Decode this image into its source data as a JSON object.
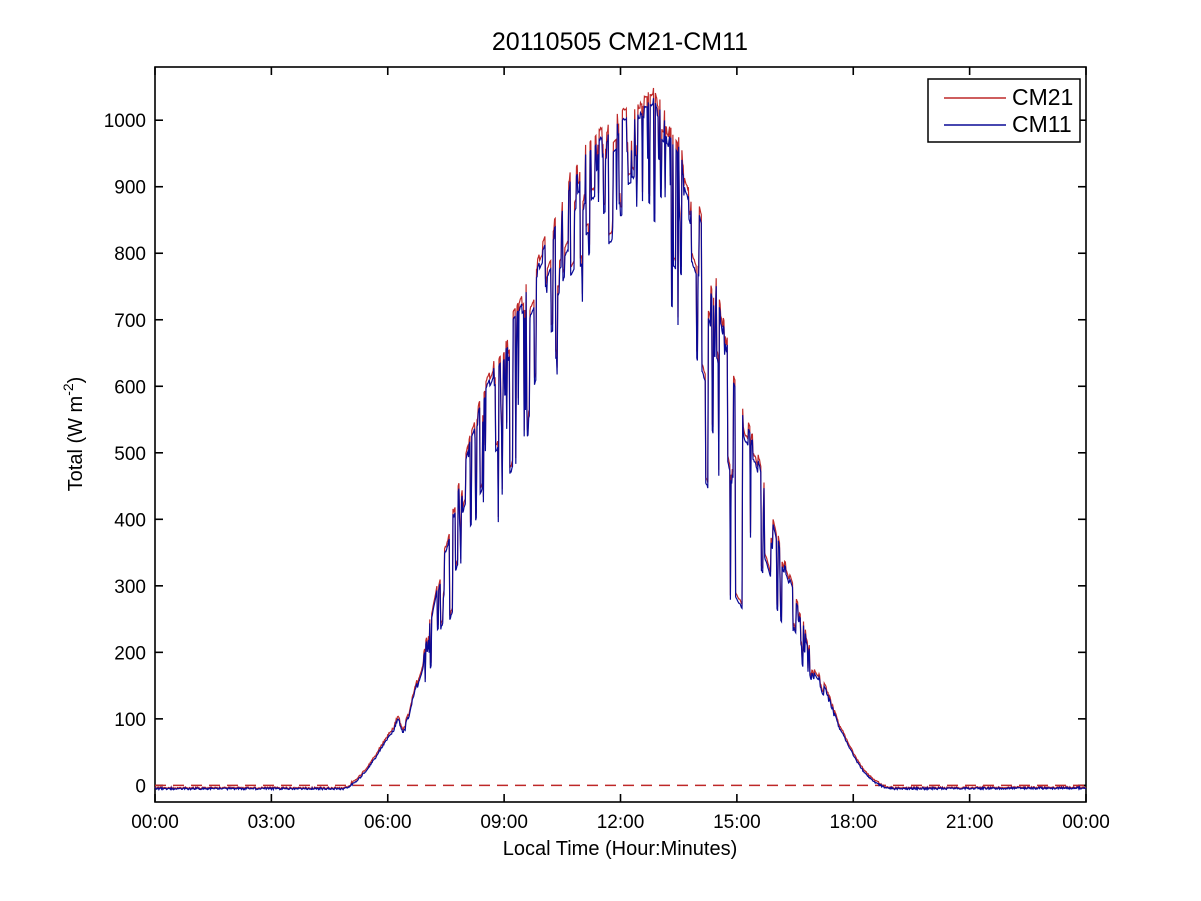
{
  "figure": {
    "title": "20110505 CM21-CM11",
    "y_axis_label_parts": {
      "pre": "Total (W m",
      "sup": "-2",
      "post": ")"
    }
  },
  "chart_data": {
    "type": "line",
    "title": "20110505 CM21-CM11",
    "xlabel": "Local Time (Hour:Minutes)",
    "ylabel": "Total (W m^-2)",
    "x_tick_labels": [
      "00:00",
      "03:00",
      "06:00",
      "09:00",
      "12:00",
      "15:00",
      "18:00",
      "21:00",
      "00:00"
    ],
    "x_tick_hours": [
      0,
      3,
      6,
      9,
      12,
      15,
      18,
      21,
      24
    ],
    "y_ticks": [
      0,
      100,
      200,
      300,
      400,
      500,
      600,
      700,
      800,
      900,
      1000
    ],
    "xlim_hours": [
      0,
      24
    ],
    "ylim": [
      -25,
      1080
    ],
    "grid": false,
    "legend_position": "top-right",
    "series": [
      {
        "name": "CM21",
        "color": "#be2828",
        "line_style": "solid",
        "note": "pyranometer trace, almost identical to CM11, slightly higher at spike maxima"
      },
      {
        "name": "CM11",
        "color": "#0a0a96",
        "line_style": "solid",
        "note": "pyranometer trace drawn over CM21"
      }
    ],
    "zero_line": {
      "y": 0,
      "color": "#be2828",
      "line_style": "dashed"
    },
    "night_offset_wm2": -5,
    "sunrise_hour": 5.05,
    "sunset_hour": 18.8,
    "peak_wm2": 1030,
    "peak_hour": 12.85,
    "envelope": {
      "description": "1-min global irradiance; mean level and relative cloud-spike variability read from plot",
      "hours": [
        0.0,
        4.9,
        5.05,
        5.3,
        5.6,
        5.9,
        6.15,
        6.28,
        6.42,
        6.7,
        7.0,
        7.3,
        7.6,
        7.9,
        8.2,
        8.5,
        8.8,
        9.1,
        9.4,
        9.7,
        10.0,
        10.3,
        10.6,
        10.9,
        11.2,
        11.5,
        11.8,
        12.1,
        12.5,
        12.85,
        13.1,
        13.4,
        13.7,
        14.0,
        14.3,
        14.6,
        14.9,
        15.2,
        15.5,
        15.8,
        16.1,
        16.4,
        16.7,
        17.0,
        17.25,
        17.45,
        17.7,
        18.0,
        18.3,
        18.6,
        18.8,
        19.05,
        24.0
      ],
      "cm11_mean": [
        -5,
        -5,
        0,
        12,
        35,
        62,
        85,
        105,
        82,
        140,
        210,
        300,
        370,
        440,
        510,
        565,
        605,
        640,
        700,
        745,
        790,
        825,
        860,
        900,
        930,
        950,
        975,
        995,
        1000,
        1000,
        965,
        930,
        885,
        830,
        760,
        680,
        580,
        520,
        490,
        420,
        340,
        290,
        235,
        170,
        148,
        118,
        80,
        45,
        18,
        3,
        -3,
        -5,
        -4
      ],
      "variability": [
        0.01,
        0.01,
        0.01,
        0.02,
        0.03,
        0.04,
        0.06,
        0.08,
        0.08,
        0.12,
        0.25,
        0.3,
        0.3,
        0.3,
        0.3,
        0.32,
        0.33,
        0.3,
        0.28,
        0.26,
        0.25,
        0.24,
        0.22,
        0.2,
        0.18,
        0.16,
        0.14,
        0.12,
        0.13,
        0.16,
        0.2,
        0.24,
        0.28,
        0.35,
        0.45,
        0.55,
        0.5,
        0.45,
        0.38,
        0.36,
        0.35,
        0.3,
        0.22,
        0.12,
        0.1,
        0.06,
        0.03,
        0.02,
        0.01,
        0.01,
        0.005,
        0.005,
        0.005
      ]
    },
    "noise_seed": 20110505
  }
}
